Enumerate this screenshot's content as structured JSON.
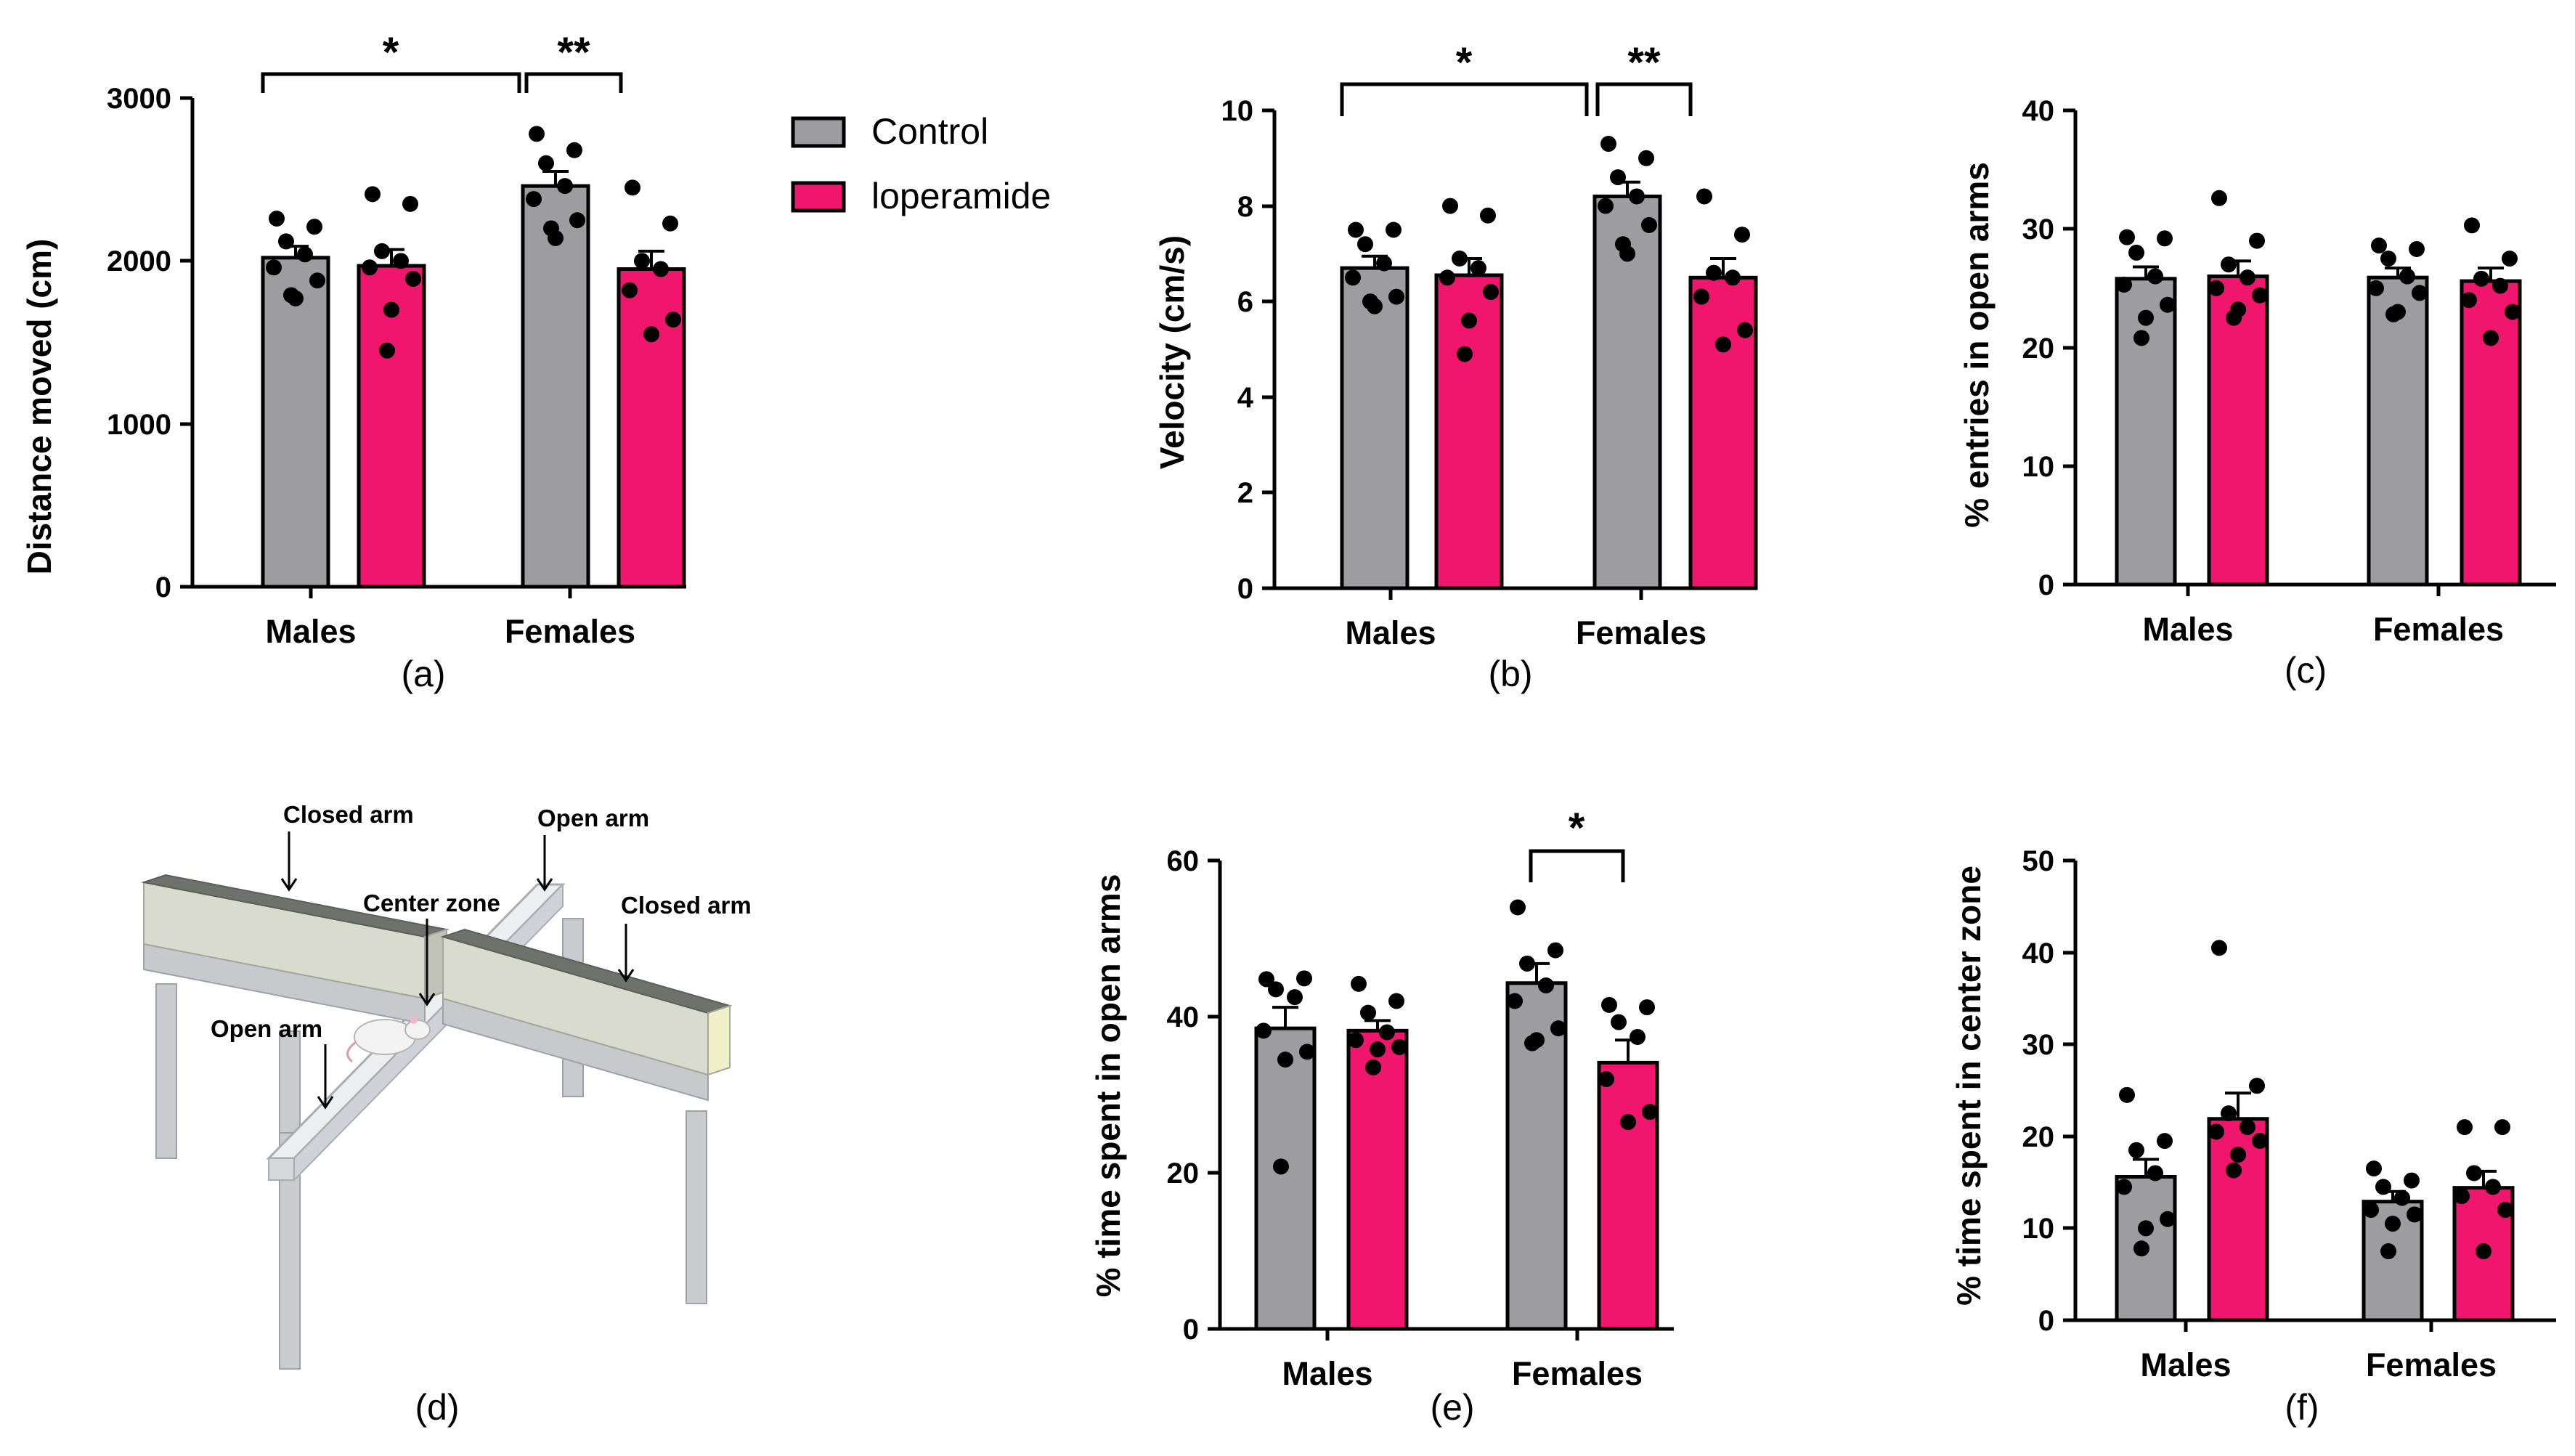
{
  "colors": {
    "control": "#9d9d9f",
    "loperamide": "#f0166d",
    "dot": "#000000"
  },
  "legend": {
    "control": "Control",
    "loperamide": "loperamide"
  },
  "apparatus": {
    "panel_label": "(d)",
    "labels": {
      "closed_arm_left": "Closed arm",
      "open_arm_top": "Open arm",
      "center_zone": "Center zone",
      "closed_arm_right": "Closed arm",
      "open_arm_bottom": "Open arm"
    }
  },
  "chart_data": [
    {
      "id": "a",
      "type": "bar",
      "panel_label": "(a)",
      "ylabel": "Distance moved (cm)",
      "ylim": [
        0,
        3000
      ],
      "yticks": [
        0,
        1000,
        2000,
        3000
      ],
      "tick_labels": [
        "0",
        "1000",
        "2000",
        "3000"
      ],
      "categories": [
        "Males",
        "Females"
      ],
      "series": [
        {
          "name": "Control",
          "values": [
            2020,
            2460
          ],
          "sem": [
            70,
            90
          ],
          "points": [
            [
              2260,
              2210,
              2120,
              2040,
              1960,
              1880,
              1770,
              1790
            ],
            [
              2780,
              2680,
              2600,
              2460,
              2380,
              2250,
              2140,
              2200
            ]
          ]
        },
        {
          "name": "loperamide",
          "values": [
            1970,
            1950
          ],
          "sem": [
            100,
            110
          ],
          "points": [
            [
              2410,
              2350,
              2060,
              2000,
              1960,
              1890,
              1700,
              1450
            ],
            [
              2450,
              2230,
              2000,
              1950,
              1820,
              1640,
              1550
            ]
          ]
        }
      ],
      "significance": [
        {
          "label": "*",
          "between": "Males Control vs Females Control"
        },
        {
          "label": "**",
          "between": "Females Control vs Females loperamide"
        }
      ]
    },
    {
      "id": "b",
      "type": "bar",
      "panel_label": "(b)",
      "ylabel": "Velocity (cm/s)",
      "ylim": [
        0,
        10
      ],
      "yticks": [
        0,
        2,
        4,
        6,
        8,
        10
      ],
      "tick_labels": [
        "0",
        "2",
        "4",
        "6",
        "8",
        "10"
      ],
      "categories": [
        "Males",
        "Females"
      ],
      "series": [
        {
          "name": "Control",
          "values": [
            6.7,
            8.2
          ],
          "sem": [
            0.25,
            0.3
          ],
          "points": [
            [
              7.5,
              7.5,
              7.2,
              6.8,
              6.5,
              6.1,
              5.9,
              6.0
            ],
            [
              9.3,
              9.0,
              8.6,
              8.2,
              8.0,
              7.6,
              7.0,
              7.2
            ]
          ]
        },
        {
          "name": "loperamide",
          "values": [
            6.55,
            6.5
          ],
          "sem": [
            0.35,
            0.4
          ],
          "points": [
            [
              8.0,
              7.8,
              6.9,
              6.7,
              6.5,
              6.2,
              5.6,
              4.9
            ],
            [
              8.2,
              7.4,
              6.6,
              6.5,
              6.1,
              5.4,
              5.1
            ]
          ]
        }
      ],
      "significance": [
        {
          "label": "*",
          "between": "Males Control vs Females Control"
        },
        {
          "label": "**",
          "between": "Females Control vs Females loperamide"
        }
      ]
    },
    {
      "id": "c",
      "type": "bar",
      "panel_label": "(c)",
      "ylabel": "% entries in open arms",
      "ylim": [
        0,
        40
      ],
      "yticks": [
        0,
        10,
        20,
        30,
        40
      ],
      "tick_labels": [
        "0",
        "10",
        "20",
        "30",
        "40"
      ],
      "categories": [
        "Males",
        "Females"
      ],
      "series": [
        {
          "name": "Control",
          "values": [
            25.8,
            25.9
          ],
          "sem": [
            1.0,
            0.8
          ],
          "points": [
            [
              29.3,
              29.2,
              28.0,
              26.0,
              25.3,
              23.6,
              22.5,
              20.8
            ],
            [
              28.6,
              28.3,
              27.5,
              26.0,
              25.0,
              24.6,
              23.0,
              22.8
            ]
          ]
        },
        {
          "name": "loperamide",
          "values": [
            26.0,
            25.6
          ],
          "sem": [
            1.3,
            1.1
          ],
          "points": [
            [
              32.6,
              29.0,
              27.0,
              25.9,
              25.0,
              24.4,
              23.2,
              22.5
            ],
            [
              30.3,
              27.5,
              25.8,
              25.2,
              24.0,
              23.0,
              20.8
            ]
          ]
        }
      ],
      "significance": []
    },
    {
      "id": "e",
      "type": "bar",
      "panel_label": "(e)",
      "ylabel": "% time spent in open arms",
      "ylim": [
        0,
        60
      ],
      "yticks": [
        0,
        20,
        40,
        60
      ],
      "tick_labels": [
        "0",
        "20",
        "40",
        "60"
      ],
      "categories": [
        "Males",
        "Females"
      ],
      "series": [
        {
          "name": "Control",
          "values": [
            38.5,
            44.3
          ],
          "sem": [
            2.7,
            2.5
          ],
          "points": [
            [
              44.8,
              44.9,
              43.5,
              42.5,
              38.2,
              35.5,
              34.5,
              20.8
            ],
            [
              54.0,
              48.5,
              46.8,
              44.0,
              42.0,
              38.5,
              37.0,
              36.6
            ]
          ]
        },
        {
          "name": "loperamide",
          "values": [
            38.2,
            34.1
          ],
          "sem": [
            1.3,
            2.9
          ],
          "points": [
            [
              44.2,
              42.0,
              40.5,
              38.0,
              37.0,
              36.1,
              35.8,
              33.5
            ],
            [
              41.5,
              41.2,
              39.3,
              37.4,
              32.0,
              27.8,
              26.5
            ]
          ]
        }
      ],
      "significance": [
        {
          "label": "*",
          "between": "Females Control vs Females loperamide"
        }
      ]
    },
    {
      "id": "f",
      "type": "bar",
      "panel_label": "(f)",
      "ylabel": "% time spent in center zone",
      "ylim": [
        0,
        50
      ],
      "yticks": [
        0,
        10,
        20,
        30,
        40,
        50
      ],
      "tick_labels": [
        "0",
        "10",
        "20",
        "30",
        "40",
        "50"
      ],
      "categories": [
        "Males",
        "Females"
      ],
      "series": [
        {
          "name": "Control",
          "values": [
            15.6,
            12.9
          ],
          "sem": [
            1.9,
            1.1
          ],
          "points": [
            [
              24.5,
              19.5,
              18.5,
              16.0,
              14.5,
              11.0,
              10.0,
              7.8
            ],
            [
              16.5,
              15.2,
              14.5,
              13.3,
              12.0,
              11.5,
              10.5,
              7.5
            ]
          ]
        },
        {
          "name": "loperamide",
          "values": [
            21.9,
            14.4
          ],
          "sem": [
            2.8,
            1.8
          ],
          "points": [
            [
              40.5,
              25.5,
              22.5,
              21.0,
              20.5,
              19.5,
              18.0,
              16.3
            ],
            [
              21.0,
              21.0,
              16.0,
              14.5,
              13.5,
              12.0,
              7.5
            ]
          ]
        }
      ],
      "significance": []
    }
  ]
}
